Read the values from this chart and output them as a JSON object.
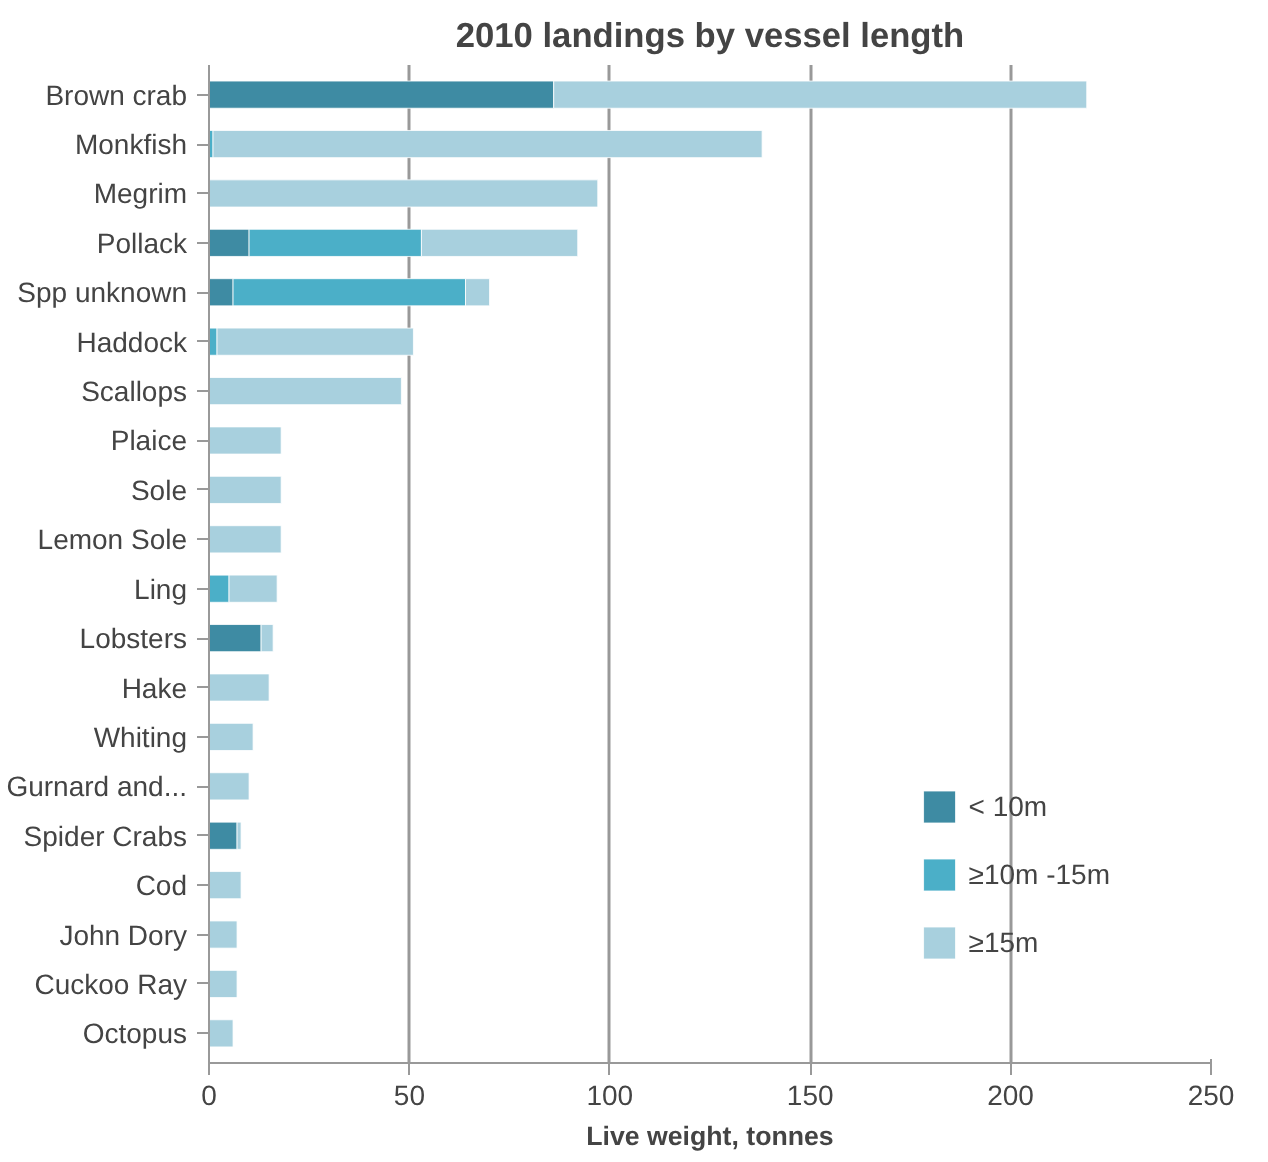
{
  "chart_data": {
    "type": "bar",
    "orientation": "horizontal",
    "stacked": true,
    "title": "2010 landings by vessel length",
    "xlabel": "Live weight, tonnes",
    "categories": [
      "Brown crab",
      "Monkfish",
      "Megrim",
      "Pollack",
      "Spp unknown",
      "Haddock",
      "Scallops",
      "Plaice",
      "Sole",
      "Lemon Sole",
      "Ling",
      "Lobsters",
      "Hake",
      "Whiting",
      "Gurnard and...",
      "Spider Crabs",
      "Cod",
      "John Dory",
      "Cuckoo Ray",
      "Octopus"
    ],
    "series": [
      {
        "name": "< 10m",
        "color": "#3e8ba3",
        "values": [
          86,
          0,
          0,
          10,
          6,
          0,
          0,
          0,
          0,
          0,
          0,
          13,
          0,
          0,
          0,
          7,
          0,
          0,
          0,
          0
        ]
      },
      {
        "name": "≥10m -15m",
        "color": "#4bafc8",
        "values": [
          0,
          1,
          0,
          43,
          58,
          2,
          0,
          0,
          0,
          0,
          5,
          0,
          0,
          0,
          0,
          0,
          0,
          0,
          0,
          0
        ]
      },
      {
        "name": "≥15m",
        "color": "#a8d0de",
        "values": [
          133,
          137,
          97,
          39,
          6,
          49,
          48,
          18,
          18,
          18,
          12,
          3,
          15,
          11,
          10,
          1,
          8,
          7,
          7,
          6
        ]
      }
    ],
    "xlim": [
      0,
      250
    ],
    "xticks": [
      0,
      50,
      100,
      150,
      200,
      250
    ],
    "grid": "x",
    "legend": "bottom right"
  }
}
